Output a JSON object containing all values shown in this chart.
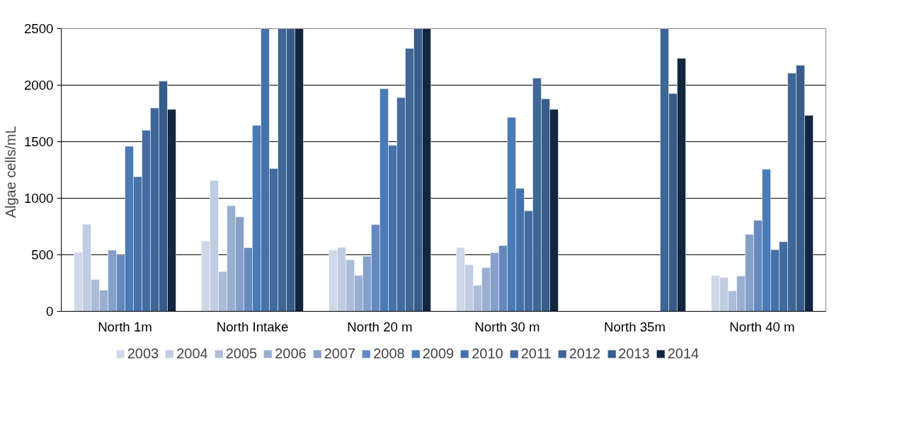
{
  "chart_data": {
    "type": "bar",
    "ylabel": "Algae  cells/mL",
    "categories": [
      "North 1m",
      "North Intake",
      "North 20 m",
      "North 30 m",
      "North 35m",
      "North 40 m"
    ],
    "ylim": [
      0,
      2500
    ],
    "yticks": [
      0,
      500,
      1000,
      1500,
      2000,
      2500
    ],
    "grid": "y",
    "legend": "bottom",
    "series": [
      {
        "name": "2003",
        "color": "#d0d8e8",
        "values": [
          523,
          622,
          543,
          565,
          null,
          317
        ]
      },
      {
        "name": "2004",
        "color": "#c0cce2",
        "values": [
          771,
          1157,
          565,
          413,
          null,
          299
        ]
      },
      {
        "name": "2005",
        "color": "#adbcd9",
        "values": [
          281,
          352,
          456,
          230,
          null,
          181
        ]
      },
      {
        "name": "2006",
        "color": "#9aafd0",
        "values": [
          187,
          934,
          317,
          386,
          null,
          313
        ]
      },
      {
        "name": "2007",
        "color": "#86a0c9",
        "values": [
          541,
          836,
          488,
          519,
          null,
          681
        ]
      },
      {
        "name": "2008",
        "color": "#6589bf",
        "values": [
          498,
          563,
          767,
          582,
          null,
          805
        ]
      },
      {
        "name": "2009",
        "color": "#4a7bb7",
        "values": [
          1460,
          1646,
          1969,
          1715,
          null,
          1257
        ]
      },
      {
        "name": "2010",
        "color": "#4572aa",
        "values": [
          1190,
          2500,
          1469,
          1088,
          null,
          545
        ]
      },
      {
        "name": "2011",
        "color": "#426ca0",
        "values": [
          1601,
          1263,
          1890,
          889,
          null,
          616
        ]
      },
      {
        "name": "2012",
        "color": "#3e6697",
        "values": [
          1798,
          2500,
          2325,
          2062,
          2500,
          2107
        ]
      },
      {
        "name": "2013",
        "color": "#375c89",
        "values": [
          2036,
          2500,
          2500,
          1879,
          1926,
          2176
        ]
      },
      {
        "name": "2014",
        "color": "#12263f",
        "values": [
          1786,
          2500,
          2500,
          1786,
          2237,
          1733
        ]
      }
    ]
  }
}
